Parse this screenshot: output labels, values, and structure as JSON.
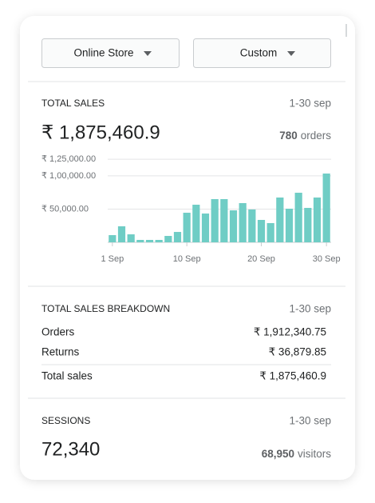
{
  "filters": {
    "store": "Online Store",
    "range": "Custom"
  },
  "total_sales": {
    "title": "TOTAL SALES",
    "period": "1-30 sep",
    "amount": "₹ 1,875,460.9",
    "orders_count": "780",
    "orders_label": "orders"
  },
  "chart_data": {
    "type": "bar",
    "categories": [
      "1 Sep",
      null,
      null,
      null,
      null,
      null,
      null,
      null,
      "10 Sep",
      null,
      null,
      null,
      null,
      null,
      null,
      null,
      "20 Sep",
      null,
      null,
      null,
      null,
      null,
      null,
      "30 Sep"
    ],
    "values": [
      10800,
      24100,
      12000,
      3600,
      3600,
      3600,
      9600,
      15600,
      44500,
      56600,
      43300,
      65000,
      65000,
      48100,
      59000,
      49400,
      33700,
      28900,
      67400,
      50600,
      74600,
      51800,
      67400,
      103500
    ],
    "color": "#6fcdc5",
    "ylim": [
      0,
      130000
    ],
    "yticks": [
      {
        "value": 50000,
        "label": "₹ 50,000.00"
      },
      {
        "value": 100000,
        "label": "₹ 1,00,000.00"
      },
      {
        "value": 125000,
        "label": "₹ 1,25,000.00"
      }
    ],
    "grid": true
  },
  "breakdown": {
    "title": "TOTAL SALES BREAKDOWN",
    "period": "1-30 sep",
    "rows": [
      [
        "Orders",
        "₹ 1,912,340.75"
      ],
      [
        "Returns",
        "₹ 36,879.85"
      ],
      [
        "Total sales",
        "₹ 1,875,460.9"
      ]
    ]
  },
  "sessions": {
    "title": "SESSIONS",
    "period": "1-30 sep",
    "count": "72,340",
    "visitors_count": "68,950",
    "visitors_label": "visitors"
  }
}
